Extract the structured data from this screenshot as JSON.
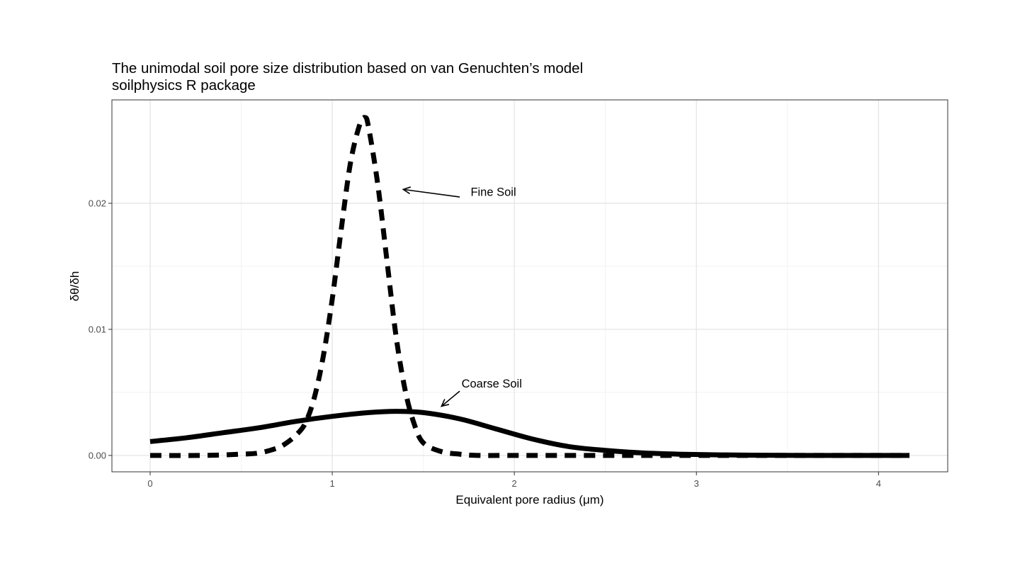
{
  "chart_data": {
    "type": "line",
    "title": "The unimodal soil pore size distribution based on van Genuchten’s model",
    "subtitle": "soilphysics R package",
    "xlabel": "Equivalent pore radius (μm)",
    "ylabel": "δθ/δh",
    "xlim": [
      -0.21,
      4.38
    ],
    "ylim": [
      -0.0013,
      0.0282
    ],
    "x_ticks": [
      0,
      1,
      2,
      3,
      4
    ],
    "x_tick_labels": [
      "0",
      "1",
      "2",
      "3",
      "4"
    ],
    "y_ticks": [
      0.0,
      0.01,
      0.02
    ],
    "y_tick_labels": [
      "0.00",
      "0.01",
      "0.02"
    ],
    "grid": true,
    "legend": "none",
    "series": [
      {
        "line_style": "dashed",
        "color": "#000000",
        "x": [
          0.0,
          0.3,
          0.5,
          0.6,
          0.7,
          0.75,
          0.8,
          0.85,
          0.9,
          0.95,
          1.0,
          1.05,
          1.1,
          1.15,
          1.18,
          1.2,
          1.25,
          1.3,
          1.35,
          1.4,
          1.45,
          1.5,
          1.6,
          1.7,
          1.8,
          2.0,
          2.5,
          3.0,
          3.5,
          4.17
        ],
        "y": [
          0.0,
          0.0,
          0.0001,
          0.0002,
          0.0006,
          0.001,
          0.0016,
          0.0025,
          0.0045,
          0.0078,
          0.0124,
          0.018,
          0.0232,
          0.0262,
          0.0268,
          0.026,
          0.0215,
          0.0155,
          0.0095,
          0.0052,
          0.0025,
          0.001,
          0.0003,
          0.0001,
          0.0,
          0.0,
          0.0,
          0.0,
          0.0,
          0.0
        ]
      },
      {
        "line_style": "solid",
        "color": "#000000",
        "x": [
          0.0,
          0.2,
          0.4,
          0.6,
          0.8,
          1.0,
          1.2,
          1.35,
          1.5,
          1.7,
          1.9,
          2.1,
          2.3,
          2.5,
          2.7,
          2.9,
          3.1,
          3.3,
          3.6,
          4.0,
          4.17
        ],
        "y": [
          0.0011,
          0.0014,
          0.0018,
          0.0022,
          0.0027,
          0.0031,
          0.0034,
          0.0035,
          0.0034,
          0.0029,
          0.0021,
          0.0013,
          0.0007,
          0.0004,
          0.0002,
          0.0001,
          5e-05,
          2e-05,
          0.0,
          0.0,
          0.0
        ]
      }
    ],
    "annotations": [
      {
        "text": "Fine Soil",
        "text_x": 1.76,
        "text_y": 0.0206,
        "arrow_from": [
          1.7,
          0.0205
        ],
        "arrow_to": [
          1.39,
          0.0211
        ]
      },
      {
        "text": "Coarse Soil",
        "text_x": 1.71,
        "text_y": 0.0054,
        "arrow_from": [
          1.7,
          0.0051
        ],
        "arrow_to": [
          1.6,
          0.0039
        ]
      }
    ]
  }
}
